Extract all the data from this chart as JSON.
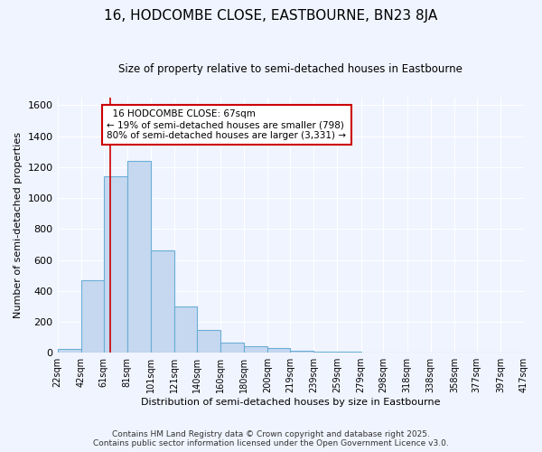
{
  "title": "16, HODCOMBE CLOSE, EASTBOURNE, BN23 8JA",
  "subtitle": "Size of property relative to semi-detached houses in Eastbourne",
  "xlabel": "Distribution of semi-detached houses by size in Eastbourne",
  "ylabel": "Number of semi-detached properties",
  "bin_edges": [
    22,
    42,
    61,
    81,
    101,
    121,
    140,
    160,
    180,
    200,
    219,
    239,
    259,
    279,
    298,
    318,
    338,
    358,
    377,
    397,
    417
  ],
  "bar_heights": [
    25,
    470,
    1140,
    1240,
    660,
    300,
    150,
    65,
    45,
    30,
    15,
    5,
    5,
    3,
    2,
    1,
    1,
    1,
    1,
    1
  ],
  "bar_color": "#c5d8f0",
  "bar_edge_color": "#6baed6",
  "bar_linewidth": 0.8,
  "property_size": 67,
  "property_line_color": "#cc0000",
  "annotation_text": "  16 HODCOMBE CLOSE: 67sqm\n← 19% of semi-detached houses are smaller (798)\n80% of semi-detached houses are larger (3,331) →",
  "annotation_box_color": "white",
  "annotation_box_edge_color": "#cc0000",
  "ylim": [
    0,
    1650
  ],
  "background_color": "#f0f4ff",
  "plot_bg_color": "#f0f4ff",
  "grid_color": "white",
  "footer_line1": "Contains HM Land Registry data © Crown copyright and database right 2025.",
  "footer_line2": "Contains public sector information licensed under the Open Government Licence v3.0.",
  "yticks": [
    0,
    200,
    400,
    600,
    800,
    1000,
    1200,
    1400,
    1600
  ]
}
